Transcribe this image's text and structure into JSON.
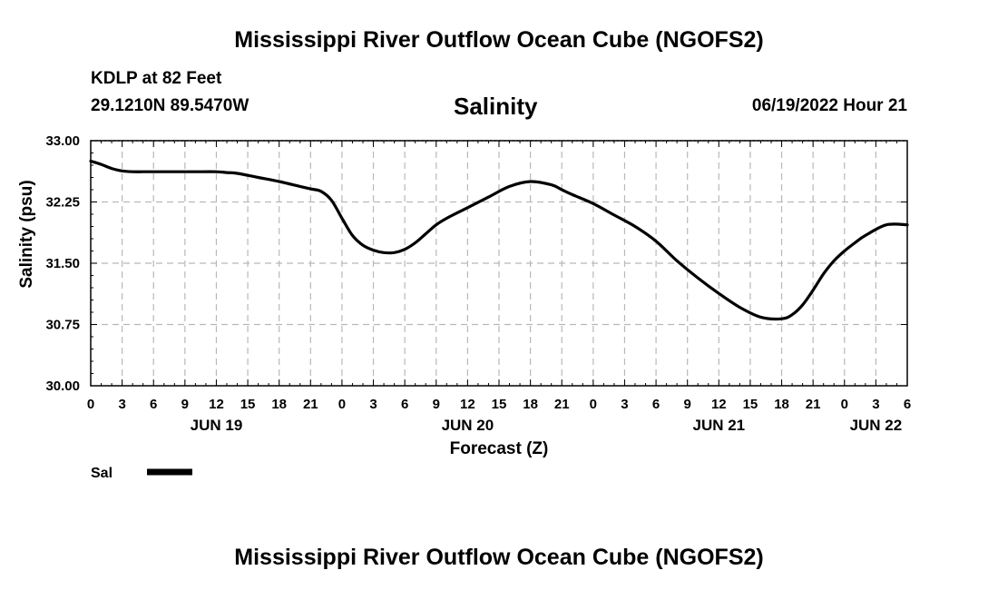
{
  "header": {
    "title_top": "Mississippi River Outflow Ocean Cube (NGOFS2)",
    "station": "KDLP at 82 Feet",
    "coords": "29.1210N  89.5470W",
    "datetime": "06/19/2022 Hour 21",
    "title_bottom": "Mississippi River Outflow Ocean Cube (NGOFS2)"
  },
  "colors": {
    "line": "#000000",
    "grid": "#b8b8b8",
    "axis": "#000000"
  },
  "chart_data": {
    "type": "line",
    "title": "Salinity",
    "xlabel": "Forecast (Z)",
    "ylabel": "Salinity (psu)",
    "xlim": [
      0,
      78
    ],
    "ylim": [
      30.0,
      33.0
    ],
    "yticks": [
      "30.00",
      "30.75",
      "31.50",
      "32.25",
      "33.00"
    ],
    "ytick_values": [
      30.0,
      30.75,
      31.5,
      32.25,
      33.0
    ],
    "xtick_hours": [
      0,
      3,
      6,
      9,
      12,
      15,
      18,
      21,
      24,
      27,
      30,
      33,
      36,
      39,
      42,
      45,
      48,
      51,
      54,
      57,
      60,
      63,
      66,
      69,
      72,
      75,
      78
    ],
    "xtick_labels": [
      "0",
      "3",
      "6",
      "9",
      "12",
      "15",
      "18",
      "21",
      "0",
      "3",
      "6",
      "9",
      "12",
      "15",
      "18",
      "21",
      "0",
      "3",
      "6",
      "9",
      "12",
      "15",
      "18",
      "21",
      "0",
      "3",
      "6"
    ],
    "day_labels": [
      {
        "label": "JUN 19",
        "hour": 12
      },
      {
        "label": "JUN 20",
        "hour": 36
      },
      {
        "label": "JUN 21",
        "hour": 60
      },
      {
        "label": "JUN 22",
        "hour": 75
      }
    ],
    "grid": true,
    "legend": "bottom-left",
    "series": [
      {
        "name": "Sal",
        "x": [
          0,
          1,
          2,
          3,
          4,
          5,
          6,
          8,
          10,
          12,
          13,
          14,
          16,
          18,
          20,
          21,
          22,
          23,
          24,
          25,
          26,
          27,
          28,
          29,
          30,
          31,
          32,
          33,
          34,
          36,
          38,
          40,
          42,
          44,
          45,
          46,
          48,
          50,
          52,
          54,
          56,
          58,
          60,
          62,
          64,
          66,
          67,
          68,
          69,
          70,
          71,
          72,
          73,
          74,
          76,
          78
        ],
        "values": [
          32.75,
          32.71,
          32.66,
          32.63,
          32.62,
          32.62,
          32.62,
          32.62,
          32.62,
          32.62,
          32.61,
          32.6,
          32.55,
          32.5,
          32.44,
          32.41,
          32.38,
          32.27,
          32.05,
          31.84,
          31.72,
          31.66,
          31.63,
          31.63,
          31.67,
          31.75,
          31.86,
          31.97,
          32.05,
          32.18,
          32.31,
          32.44,
          32.5,
          32.46,
          32.4,
          32.34,
          32.23,
          32.09,
          31.95,
          31.77,
          31.53,
          31.32,
          31.13,
          30.96,
          30.84,
          30.82,
          30.87,
          30.99,
          31.17,
          31.37,
          31.53,
          31.65,
          31.75,
          31.84,
          31.97,
          31.97
        ]
      }
    ]
  }
}
